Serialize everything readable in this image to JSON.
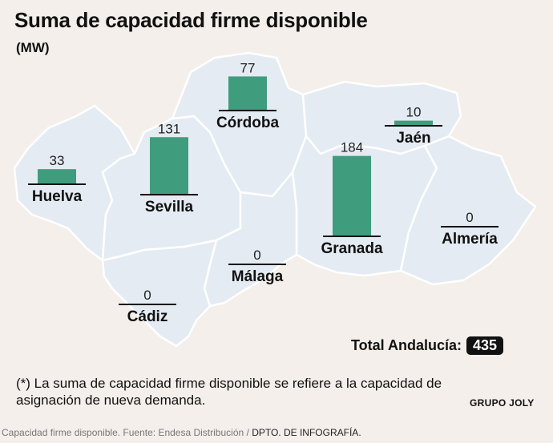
{
  "header": {
    "title": "Suma de capacidad firme disponible",
    "subtitle": "(MW)"
  },
  "chart_data": {
    "type": "bar",
    "title": "Suma de capacidad firme disponible",
    "ylabel": "(MW)",
    "categories": [
      "Huelva",
      "Sevilla",
      "Córdoba",
      "Jaén",
      "Granada",
      "Almería",
      "Málaga",
      "Cádiz"
    ],
    "values": [
      33,
      131,
      77,
      10,
      184,
      0,
      0,
      0
    ],
    "series": [
      {
        "values": [
          33,
          131,
          77,
          10,
          184,
          0,
          0,
          0
        ],
        "color": "#3f9c7c"
      }
    ],
    "bar_color": "#3f9c7c",
    "map_color": "#e4ebf2",
    "background": "#f4efea",
    "grid": false
  },
  "total": {
    "label": "Total Andalucía:",
    "value": "435"
  },
  "footnote": "(*) La suma de capacidad firme disponible se refiere a la capacidad de asignación de nueva demanda.",
  "brand": "GRUPO JOLY",
  "source": {
    "text": "Capacidad firme disponible. Fuente: Endesa Distribución /",
    "dept": "DPTO. DE INFOGRAFÍA."
  }
}
